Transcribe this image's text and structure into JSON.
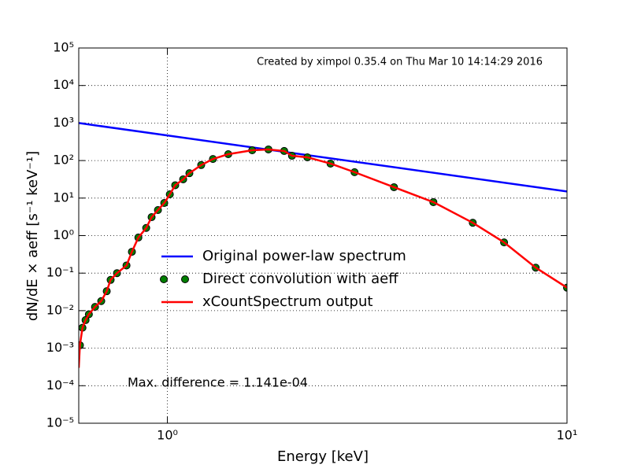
{
  "chart_data": {
    "type": "line",
    "xlabel": "Energy [keV]",
    "ylabel": "dN/dE × aeff [s⁻¹ keV⁻¹]",
    "annotations": [
      "Created by ximpol 0.35.4 on Thu Mar 10 14:14:29 2016",
      "Max. difference = 1.141e-04"
    ],
    "xscale": "log",
    "yscale": "log",
    "xlim": [
      0.6,
      10
    ],
    "ylim": [
      1e-05,
      100000
    ],
    "xticks": [
      {
        "value": 1,
        "label": "10⁰"
      },
      {
        "value": 10,
        "label": "10¹"
      }
    ],
    "yticks": [
      {
        "value": 1e-05,
        "label": "10⁻⁵"
      },
      {
        "value": 0.0001,
        "label": "10⁻⁴"
      },
      {
        "value": 0.001,
        "label": "10⁻³"
      },
      {
        "value": 0.01,
        "label": "10⁻²"
      },
      {
        "value": 0.1,
        "label": "10⁻¹"
      },
      {
        "value": 1,
        "label": "10⁰"
      },
      {
        "value": 10,
        "label": "10¹"
      },
      {
        "value": 100,
        "label": "10²"
      },
      {
        "value": 1000,
        "label": "10³"
      },
      {
        "value": 10000,
        "label": "10⁴"
      },
      {
        "value": 100000,
        "label": "10⁵"
      }
    ],
    "grid": true,
    "legend": "center left",
    "series": [
      {
        "name": "Original power-law spectrum",
        "color": "#0000ff",
        "style": "line",
        "x": [
          0.6,
          10
        ],
        "values": [
          1000,
          15
        ]
      },
      {
        "name": "Direct convolution with aeff",
        "color": "#007f00",
        "style": "markers",
        "x": [
          0.604,
          0.613,
          0.624,
          0.636,
          0.659,
          0.683,
          0.705,
          0.721,
          0.748,
          0.79,
          0.815,
          0.846,
          0.885,
          0.913,
          0.947,
          0.982,
          1.014,
          1.046,
          1.095,
          1.135,
          1.215,
          1.3,
          1.42,
          1.63,
          1.79,
          1.96,
          2.05,
          2.24,
          2.56,
          2.94,
          3.69,
          4.63,
          5.81,
          6.96,
          8.35,
          10
        ],
        "values": [
          0.0012,
          0.0035,
          0.0056,
          0.008,
          0.0126,
          0.018,
          0.033,
          0.066,
          0.1,
          0.16,
          0.37,
          0.89,
          1.6,
          3.1,
          4.8,
          7.4,
          12.6,
          22,
          31.6,
          46,
          76,
          110,
          148,
          188,
          198,
          180,
          134,
          122,
          83,
          49,
          19.5,
          7.8,
          2.2,
          0.66,
          0.14,
          0.041
        ]
      },
      {
        "name": "xCountSpectrum output",
        "color": "#ff0000",
        "style": "line",
        "x": [
          0.6,
          0.604,
          0.613,
          0.624,
          0.636,
          0.659,
          0.683,
          0.705,
          0.721,
          0.748,
          0.79,
          0.815,
          0.846,
          0.885,
          0.913,
          0.947,
          0.982,
          1.014,
          1.046,
          1.095,
          1.135,
          1.215,
          1.3,
          1.42,
          1.63,
          1.79,
          1.96,
          2.05,
          2.24,
          2.56,
          2.94,
          3.69,
          4.63,
          5.81,
          6.96,
          8.35,
          10
        ],
        "values": [
          0.0003,
          0.0012,
          0.0035,
          0.0056,
          0.008,
          0.0126,
          0.018,
          0.033,
          0.066,
          0.1,
          0.16,
          0.37,
          0.89,
          1.6,
          3.1,
          4.8,
          7.4,
          12.6,
          22,
          31.6,
          46,
          76,
          110,
          148,
          188,
          198,
          180,
          134,
          122,
          83,
          49,
          19.5,
          7.8,
          2.2,
          0.66,
          0.14,
          0.041
        ]
      }
    ]
  }
}
